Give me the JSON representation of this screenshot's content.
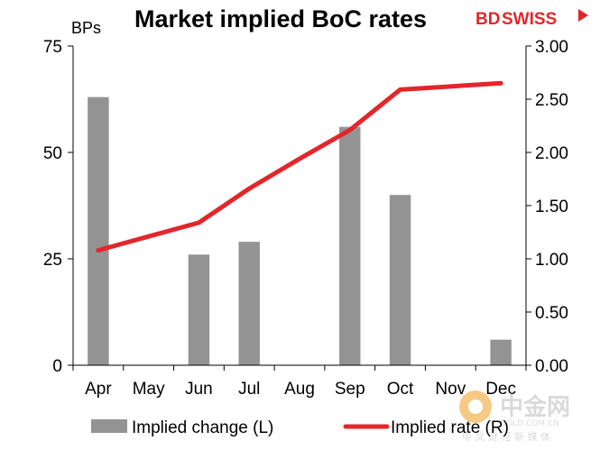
{
  "brand": {
    "logo_text_bd": "BD",
    "logo_text_swiss": "SWISS",
    "logo_color": "#e3262b"
  },
  "watermark": {
    "main": "中金网",
    "url": "GOLD.COM.CN",
    "tagline": "中 文 财 经 新 媒 体"
  },
  "chart_data": {
    "type": "bar+line",
    "title": "Market implied BoC rates",
    "left_unit_label": "BPs",
    "categories": [
      "Apr",
      "May",
      "Jun",
      "Jul",
      "Aug",
      "Sep",
      "Oct",
      "Nov",
      "Dec"
    ],
    "left_axis": {
      "min": 0,
      "max": 75,
      "ticks": [
        "0",
        "25",
        "50",
        "75"
      ]
    },
    "right_axis": {
      "min": 0,
      "max": 3,
      "ticks": [
        "0.00",
        "0.50",
        "1.00",
        "1.50",
        "2.00",
        "2.50",
        "3.00"
      ]
    },
    "series": [
      {
        "name": "Implied change (L)",
        "type": "bar",
        "axis": "left",
        "color": "#939393",
        "values": [
          63,
          0,
          26,
          29,
          0,
          56,
          40,
          0,
          6
        ]
      },
      {
        "name": "Implied rate (R)",
        "type": "line",
        "axis": "right",
        "color": "#e3262b",
        "values": [
          1.08,
          1.21,
          1.34,
          1.66,
          1.94,
          2.21,
          2.59,
          2.62,
          2.65
        ]
      }
    ],
    "grid": false,
    "legend_position": "bottom"
  }
}
